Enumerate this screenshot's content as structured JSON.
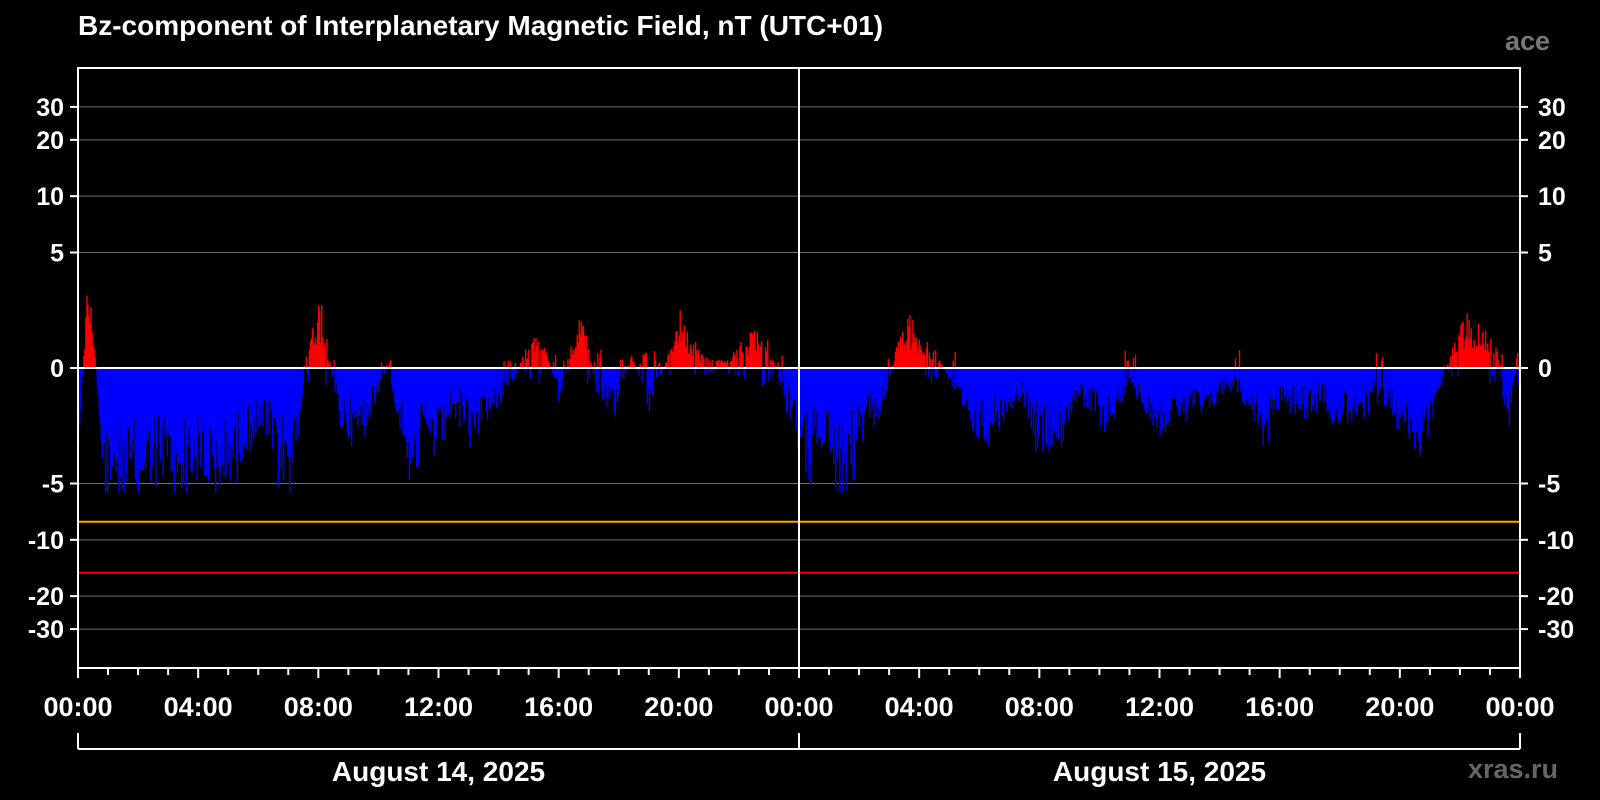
{
  "header": {
    "title": "Bz-component of Interplanetary Magnetic Field, nT (UTC+01)",
    "source": "ace",
    "site": "xras.ru"
  },
  "chart_data": {
    "type": "bar",
    "title": "Bz-component of Interplanetary Magnetic Field, nT (UTC+01)",
    "ylabel": "",
    "xlabel": "",
    "y_scale": "piecewise: linear between -5 and 5, logarithmic beyond",
    "ylim": [
      -40,
      40
    ],
    "y_ticks": [
      30,
      20,
      10,
      5,
      0,
      -5,
      -10,
      -20,
      -30
    ],
    "y_tick_labels": [
      "30",
      "20",
      "10",
      "5",
      "0",
      "-5",
      "-10",
      "-20",
      "-30"
    ],
    "x_tick_labels": [
      "00:00",
      "04:00",
      "08:00",
      "12:00",
      "16:00",
      "20:00",
      "00:00",
      "04:00",
      "08:00",
      "12:00",
      "16:00",
      "20:00",
      "00:00"
    ],
    "x_hours_range": [
      0,
      48
    ],
    "dates": [
      "August 14, 2025",
      "August 15, 2025"
    ],
    "positive_color": "#ff0000",
    "negative_color": "#0000ff",
    "threshold_lines": [
      {
        "value": -8,
        "color": "#ffa500"
      },
      {
        "value": -15,
        "color": "#ff0000"
      }
    ],
    "grid": true,
    "legend": "none",
    "bz_profile_hours": [
      0,
      0.3,
      0.5,
      0.8,
      1.5,
      2.2,
      2.6,
      3.2,
      4.0,
      4.7,
      5.5,
      6.2,
      7.0,
      7.3,
      7.6,
      8.0,
      8.3,
      8.7,
      9.2,
      9.6,
      10.0,
      10.2,
      10.7,
      11.0,
      11.5,
      12.0,
      12.5,
      13.0,
      13.5,
      14.0,
      14.4,
      14.8,
      15.2,
      15.6,
      16.0,
      16.4,
      16.8,
      17.2,
      17.8,
      18.4,
      19.0,
      19.6,
      20.0,
      20.4,
      21.0,
      21.6,
      22.0,
      22.5,
      23.0,
      23.5,
      24.0,
      24.4,
      24.9,
      25.3,
      25.8,
      26.3,
      26.8,
      27.2,
      27.6,
      28.0,
      28.6,
      29.2,
      29.7,
      30.2,
      30.8,
      31.4,
      32.0,
      32.6,
      33.2,
      33.8,
      34.2,
      34.6,
      35.0,
      35.5,
      36.0,
      36.5,
      37.0,
      37.5,
      38.0,
      38.5,
      39.0,
      39.5,
      40.0,
      40.5,
      41.0,
      41.4,
      41.8,
      42.4,
      42.9,
      43.4,
      44.0,
      44.6,
      45.2,
      45.8,
      46.3,
      46.8,
      47.2,
      47.6,
      48.0
    ],
    "bz_profile_nT": [
      -3.5,
      3.5,
      1.5,
      -4.2,
      -5.2,
      -4.6,
      -3.8,
      -4.7,
      -4.3,
      -4.9,
      -3.2,
      -2.6,
      -4.8,
      -2.5,
      0.6,
      2.6,
      0.7,
      -2.3,
      -3.0,
      -2.1,
      -1.0,
      0.5,
      -2.4,
      -3.6,
      -2.8,
      -3.7,
      -1.5,
      -2.6,
      -1.8,
      -1.2,
      -0.8,
      0.5,
      1.4,
      0.6,
      -1.5,
      1.0,
      2.2,
      -0.8,
      -1.8,
      0.5,
      -1.4,
      0.4,
      2.2,
      1.0,
      0.3,
      0.3,
      0.9,
      1.6,
      0.8,
      -1.3,
      -2.8,
      -3.8,
      -2.5,
      -4.5,
      -3.6,
      -2.5,
      -1.6,
      0.8,
      1.8,
      1.2,
      0.6,
      -1.2,
      -2.5,
      -3.0,
      -1.7,
      -1.2,
      -3.2,
      -2.8,
      -1.3,
      -1.9,
      -2.4,
      -1.6,
      -0.9,
      -1.6,
      -2.5,
      -2.0,
      -1.6,
      -2.0,
      -1.1,
      -0.8,
      -1.8,
      -2.6,
      -1.4,
      -1.5,
      -1.7,
      -1.2,
      -2.2,
      -2.0,
      -1.5,
      -1.0,
      -2.6,
      -3.4,
      -1.2,
      1.0,
      1.9,
      1.4,
      0.8,
      -2.8,
      2.0
    ]
  }
}
